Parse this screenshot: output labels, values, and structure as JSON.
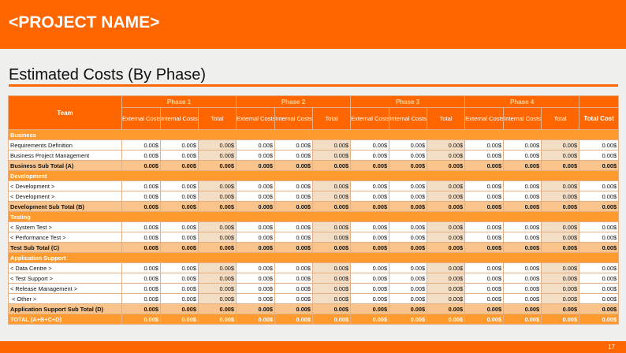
{
  "project_name": "<PROJECT NAME>",
  "section_title": "Estimated Costs (By Phase)",
  "page_number": "17",
  "colors": {
    "accent": "#ff6600",
    "section": "#ff9a2e",
    "subtotal": "#f8c48c",
    "total_cell": "#f3ddc4"
  },
  "table": {
    "team_header": "Team",
    "total_cost_header": "Total Cost",
    "phases": [
      {
        "label": "Phase 1",
        "columns": [
          "External Costs",
          "Internal Costs",
          "Total"
        ]
      },
      {
        "label": "Phase 2",
        "columns": [
          "External Costs",
          "Internal Costs",
          "Total"
        ]
      },
      {
        "label": "Phase 3",
        "columns": [
          "External Costs",
          "Internal Costs",
          "Total"
        ]
      },
      {
        "label": "Phase 4",
        "columns": [
          "External Costs",
          "Internal Costs",
          "Total"
        ]
      }
    ],
    "rows": [
      {
        "type": "section",
        "label": "Business"
      },
      {
        "type": "item",
        "label": "Requirements Definition",
        "values": [
          "0.00$",
          "0.00$",
          "0.00$",
          "0.00$",
          "0.00$",
          "0.00$",
          "0.00$",
          "0.00$",
          "0.00$",
          "0.00$",
          "0.00$",
          "0.00$",
          "0.00$"
        ]
      },
      {
        "type": "item",
        "label": "Business Project Management",
        "values": [
          "0.00$",
          "0.00$",
          "0.00$",
          "0.00$",
          "0.00$",
          "0.00$",
          "0.00$",
          "0.00$",
          "0.00$",
          "0.00$",
          "0.00$",
          "0.00$",
          "0.00$"
        ]
      },
      {
        "type": "subtotal",
        "label": "Business Sub Total (A)",
        "values": [
          "0.00$",
          "0.00$",
          "0.00$",
          "0.00$",
          "0.00$",
          "0.00$",
          "0.00$",
          "0.00$",
          "0.00$",
          "0.00$",
          "0.00$",
          "0.00$",
          "0.00$"
        ]
      },
      {
        "type": "section",
        "label": "Development"
      },
      {
        "type": "item",
        "label": "< Development >",
        "values": [
          "0.00$",
          "0.00$",
          "0.00$",
          "0.00$",
          "0.00$",
          "0.00$",
          "0.00$",
          "0.00$",
          "0.00$",
          "0.00$",
          "0.00$",
          "0.00$",
          "0.00$"
        ]
      },
      {
        "type": "item",
        "label": "< Development >",
        "values": [
          "0.00$",
          "0.00$",
          "0.00$",
          "0.00$",
          "0.00$",
          "0.00$",
          "0.00$",
          "0.00$",
          "0.00$",
          "0.00$",
          "0.00$",
          "0.00$",
          "0.00$"
        ]
      },
      {
        "type": "subtotal",
        "label": "Development Sub Total (B)",
        "values": [
          "0.00$",
          "0.00$",
          "0.00$",
          "0.00$",
          "0.00$",
          "0.00$",
          "0.00$",
          "0.00$",
          "0.00$",
          "0.00$",
          "0.00$",
          "0.00$",
          "0.00$"
        ]
      },
      {
        "type": "section",
        "label": "Testing"
      },
      {
        "type": "item",
        "label": "< System Test >",
        "values": [
          "0.00$",
          "0.00$",
          "0.00$",
          "0.00$",
          "0.00$",
          "0.00$",
          "0.00$",
          "0.00$",
          "0.00$",
          "0.00$",
          "0.00$",
          "0.00$",
          "0.00$"
        ]
      },
      {
        "type": "item",
        "label": "< Performance Test >",
        "values": [
          "0.00$",
          "0.00$",
          "0.00$",
          "0.00$",
          "0.00$",
          "0.00$",
          "0.00$",
          "0.00$",
          "0.00$",
          "0.00$",
          "0.00$",
          "0.00$",
          "0.00$"
        ]
      },
      {
        "type": "subtotal",
        "label": "Test Sub Total (C)",
        "values": [
          "0.00$",
          "0.00$",
          "0.00$",
          "0.00$",
          "0.00$",
          "0.00$",
          "0.00$",
          "0.00$",
          "0.00$",
          "0.00$",
          "0.00$",
          "0.00$",
          "0.00$"
        ]
      },
      {
        "type": "section",
        "label": "Application Support"
      },
      {
        "type": "item",
        "label": "< Data Centre >",
        "values": [
          "0.00$",
          "0.00$",
          "0.00$",
          "0.00$",
          "0.00$",
          "0.00$",
          "0.00$",
          "0.00$",
          "0.00$",
          "0.00$",
          "0.00$",
          "0.00$",
          "0.00$"
        ]
      },
      {
        "type": "item",
        "label": "< Test Support >",
        "values": [
          "0.00$",
          "0.00$",
          "0.00$",
          "0.00$",
          "0.00$",
          "0.00$",
          "0.00$",
          "0.00$",
          "0.00$",
          "0.00$",
          "0.00$",
          "0.00$",
          "0.00$"
        ]
      },
      {
        "type": "item",
        "label": "< Release Management >",
        "values": [
          "0.00$",
          "0.00$",
          "0.00$",
          "0.00$",
          "0.00$",
          "0.00$",
          "0.00$",
          "0.00$",
          "0.00$",
          "0.00$",
          "0.00$",
          "0.00$",
          "0.00$"
        ]
      },
      {
        "type": "item",
        "label": " < Other >",
        "values": [
          "0.00$",
          "0.00$",
          "0.00$",
          "0.00$",
          "0.00$",
          "0.00$",
          "0.00$",
          "0.00$",
          "0.00$",
          "0.00$",
          "0.00$",
          "0.00$",
          "0.00$"
        ]
      },
      {
        "type": "subtotal",
        "label": "Application Support Sub Total (D)",
        "values": [
          "0.00$",
          "0.00$",
          "0.00$",
          "0.00$",
          "0.00$",
          "0.00$",
          "0.00$",
          "0.00$",
          "0.00$",
          "0.00$",
          "0.00$",
          "0.00$",
          "0.00$"
        ]
      },
      {
        "type": "grand",
        "label": "TOTAL (A+B+C+D)",
        "values": [
          "0.00$",
          "0.00$",
          "0.00$",
          "0.00$",
          "0.00$",
          "0.00$",
          "0.00$",
          "0.00$",
          "0.00$",
          "0.00$",
          "0.00$",
          "0.00$",
          "0.00$"
        ]
      }
    ]
  }
}
